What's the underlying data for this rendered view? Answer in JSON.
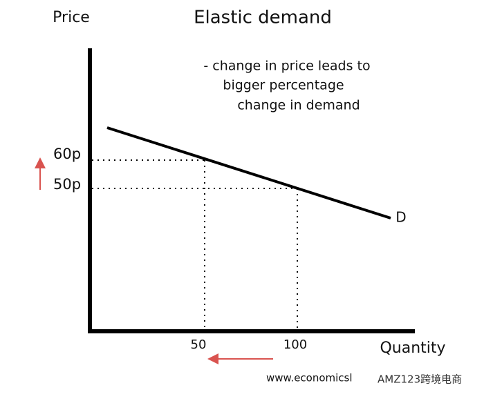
{
  "title": "Elastic demand",
  "y_axis_label": "Price",
  "x_axis_label": "Quantity",
  "annotation": [
    "- change in price leads to",
    "bigger percentage",
    "change in demand"
  ],
  "price_labels": [
    "60p",
    "50p"
  ],
  "quantity_labels": [
    "50",
    "100"
  ],
  "curve_label": "D",
  "watermark": [
    "www.economicsl",
    "AMZ123跨境电商"
  ]
}
